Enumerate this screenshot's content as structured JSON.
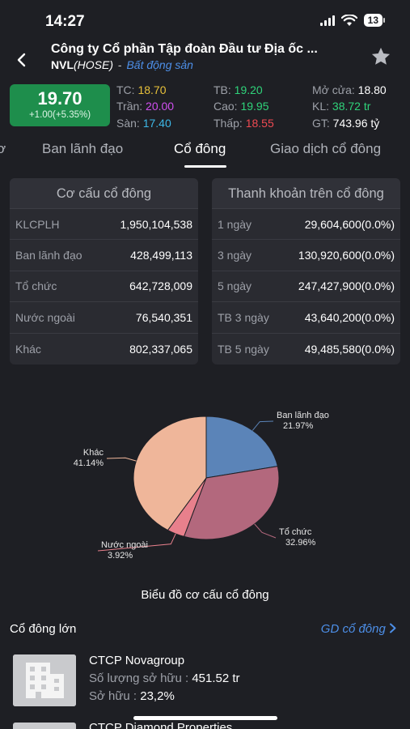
{
  "status": {
    "time": "14:27",
    "battery": "13"
  },
  "header": {
    "company": "Công ty Cổ phần Tập đoàn Đầu tư Địa ốc ...",
    "ticker": "NVL",
    "exchange": "(HOSE)",
    "separator": "-",
    "sector": "Bất động sản"
  },
  "price": {
    "value": "19.70",
    "change": "+1.00(+5.35%)",
    "color": "#1e8e4c"
  },
  "stats": {
    "tc_label": "TC:",
    "tc_value": "18.70",
    "tran_label": "Trần:",
    "tran_value": "20.00",
    "san_label": "Sàn:",
    "san_value": "17.40",
    "tb_label": "TB:",
    "tb_value": "19.20",
    "cao_label": "Cao:",
    "cao_value": "19.95",
    "thap_label": "Thấp:",
    "thap_value": "18.55",
    "mocua_label": "Mở cửa:",
    "mocua_value": "18.80",
    "kl_label": "KL:",
    "kl_value": "38.72 tr",
    "gt_label": "GT:",
    "gt_value": "743.96 tỷ"
  },
  "tabs": [
    {
      "label": "ơ"
    },
    {
      "label": "Ban lãnh đạo"
    },
    {
      "label": "Cổ đông"
    },
    {
      "label": "Giao dịch cổ đông"
    }
  ],
  "structure_card": {
    "title": "Cơ cấu cổ đông",
    "rows": [
      {
        "label": "KLCPLH",
        "value": "1,950,104,538"
      },
      {
        "label": "Ban lãnh đạo",
        "value": "428,499,113"
      },
      {
        "label": "Tổ chức",
        "value": "642,728,009"
      },
      {
        "label": "Nước ngoài",
        "value": "76,540,351"
      },
      {
        "label": "Khác",
        "value": "802,337,065"
      }
    ]
  },
  "liquidity_card": {
    "title": "Thanh khoản trên cổ đông",
    "rows": [
      {
        "label": "1 ngày",
        "value": "29,604,600(0.0%)"
      },
      {
        "label": "3 ngày",
        "value": "130,920,600(0.0%)"
      },
      {
        "label": "5 ngày",
        "value": "247,427,900(0.0%)"
      },
      {
        "label": "TB 3 ngày",
        "value": "43,640,200(0.0%)"
      },
      {
        "label": "TB 5 ngày",
        "value": "49,485,580(0.0%)"
      }
    ]
  },
  "chart_data": {
    "type": "pie",
    "title": "Biểu đồ cơ cấu cổ đông",
    "slices": [
      {
        "name": "Ban lãnh đạo",
        "value": 21.97,
        "label": "21.97%",
        "color": "#5b84b8"
      },
      {
        "name": "Tổ chức",
        "value": 32.96,
        "label": "32.96%",
        "color": "#b3687d"
      },
      {
        "name": "Nước ngoài",
        "value": 3.92,
        "label": "3.92%",
        "color": "#e8808c"
      },
      {
        "name": "Khác",
        "value": 41.14,
        "label": "41.14%",
        "color": "#efb69a"
      }
    ]
  },
  "major_holders": {
    "title": "Cổ đông lớn",
    "link": "GD cổ đông",
    "items": [
      {
        "name": "CTCP Novagroup",
        "qty_label": "Số lượng sở hữu : ",
        "qty_value": "451.52 tr",
        "own_label": "Sở hữu : ",
        "own_value": "23,2%"
      },
      {
        "name": "CTCP Diamond Properties"
      }
    ]
  }
}
